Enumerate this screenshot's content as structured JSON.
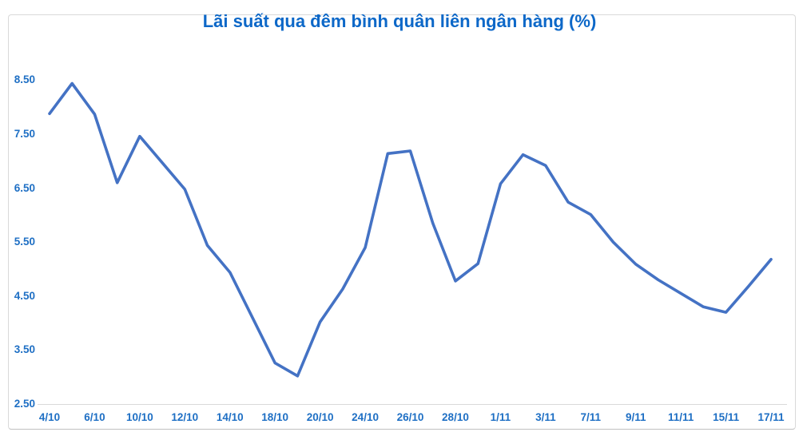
{
  "title": "Lãi suất qua đêm bình quân liên ngân hàng (%)",
  "colors": {
    "title": "#0d68c8",
    "tick_label": "#1e6fc4",
    "line": "#4472c4",
    "axis_line": "#d9d9d9",
    "frame_border": "#d9d9d9",
    "background": "#ffffff"
  },
  "chart_data": {
    "type": "line",
    "title": "Lãi suất qua đêm bình quân liên ngân hàng (%)",
    "x": [
      "4/10",
      "5/10",
      "6/10",
      "7/10",
      "10/10",
      "11/10",
      "12/10",
      "13/10",
      "14/10",
      "17/10",
      "18/10",
      "19/10",
      "20/10",
      "21/10",
      "24/10",
      "25/10",
      "26/10",
      "27/10",
      "28/10",
      "31/10",
      "1/11",
      "2/11",
      "3/11",
      "4/11",
      "7/11",
      "8/11",
      "9/11",
      "10/11",
      "11/11",
      "14/11",
      "15/11",
      "16/11",
      "17/11"
    ],
    "values": [
      7.88,
      8.44,
      7.87,
      6.6,
      7.46,
      6.97,
      6.48,
      5.44,
      4.94,
      4.1,
      3.26,
      3.02,
      4.02,
      4.63,
      5.4,
      7.14,
      7.19,
      5.85,
      4.78,
      5.1,
      6.58,
      7.12,
      6.92,
      6.24,
      6.01,
      5.5,
      5.09,
      4.8,
      4.55,
      4.3,
      4.2,
      4.68,
      5.18
    ],
    "x_tick_labels": [
      "4/10",
      "6/10",
      "10/10",
      "12/10",
      "14/10",
      "18/10",
      "20/10",
      "24/10",
      "26/10",
      "28/10",
      "1/11",
      "3/11",
      "7/11",
      "9/11",
      "11/11",
      "15/11",
      "17/11"
    ],
    "x_tick_indices": [
      0,
      2,
      4,
      6,
      8,
      10,
      12,
      14,
      16,
      18,
      20,
      22,
      24,
      26,
      28,
      30,
      32
    ],
    "y_tick_labels": [
      "8.50",
      "7.50",
      "6.50",
      "5.50",
      "4.50",
      "3.50",
      "2.50"
    ],
    "ylim": [
      2.5,
      8.5
    ],
    "grid": false,
    "legend": null,
    "xlabel": "",
    "ylabel": ""
  }
}
